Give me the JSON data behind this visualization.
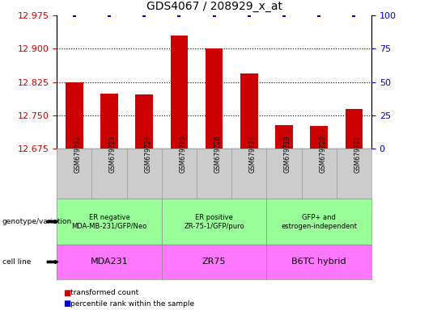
{
  "title": "GDS4067 / 208929_x_at",
  "samples": [
    "GSM679722",
    "GSM679723",
    "GSM679724",
    "GSM679725",
    "GSM679726",
    "GSM679727",
    "GSM679719",
    "GSM679720",
    "GSM679721"
  ],
  "bar_values": [
    12.825,
    12.8,
    12.798,
    12.93,
    12.9,
    12.845,
    12.728,
    12.726,
    12.765
  ],
  "percentile_values": [
    100,
    100,
    100,
    100,
    100,
    100,
    100,
    100,
    100
  ],
  "ylim_left": [
    12.675,
    12.975
  ],
  "yticks_left": [
    12.675,
    12.75,
    12.825,
    12.9,
    12.975
  ],
  "yticks_right": [
    0,
    25,
    50,
    75,
    100
  ],
  "ylim_right": [
    0,
    100
  ],
  "bar_color": "#cc0000",
  "percentile_color": "#0000cc",
  "group_labels": [
    "ER negative\nMDA-MB-231/GFP/Neo",
    "ER positive\nZR-75-1/GFP/puro",
    "GFP+ and\nestrogen-independent"
  ],
  "group_color": "#99ff99",
  "cell_labels": [
    "MDA231",
    "ZR75",
    "B6TC hybrid"
  ],
  "cell_color": "#ff77ff",
  "xtick_bg_color": "#cccccc",
  "legend_items": [
    {
      "label": "transformed count",
      "color": "#cc0000"
    },
    {
      "label": "percentile rank within the sample",
      "color": "#0000cc"
    }
  ],
  "genotype_label": "genotype/variation",
  "cellline_label": "cell line",
  "title_fontsize": 10,
  "bar_width": 0.5
}
